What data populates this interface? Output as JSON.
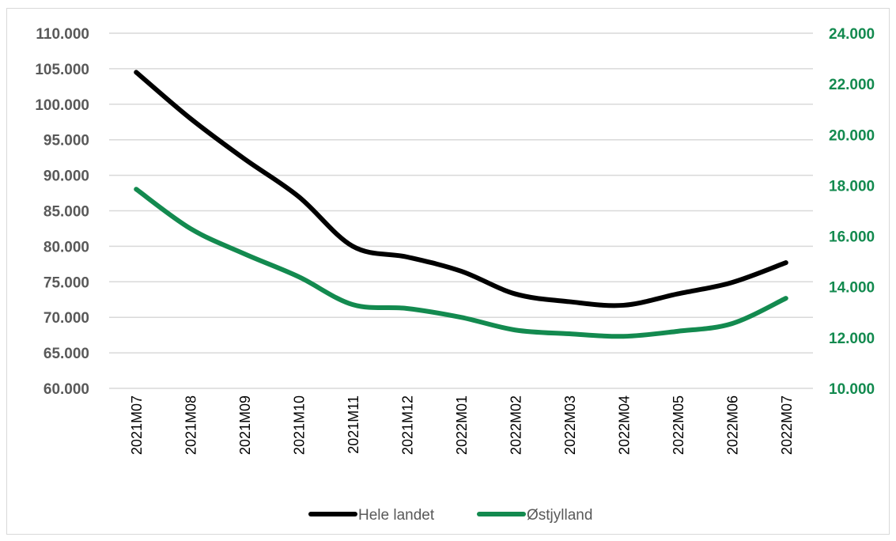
{
  "chart_data": {
    "type": "line",
    "title": "",
    "x": [
      "2021M07",
      "2021M08",
      "2021M09",
      "2021M10",
      "2021M11",
      "2021M12",
      "2022M01",
      "2022M02",
      "2022M03",
      "2022M04",
      "2022M05",
      "2022M06",
      "2022M07"
    ],
    "y_left": {
      "min": 60000,
      "max": 110000,
      "step": 5000,
      "ticks": [
        "60.000",
        "65.000",
        "70.000",
        "75.000",
        "80.000",
        "85.000",
        "90.000",
        "95.000",
        "100.000",
        "105.000",
        "110.000"
      ]
    },
    "y_right": {
      "min": 10000,
      "max": 24000,
      "step": 2000,
      "ticks": [
        "10.000",
        "12.000",
        "14.000",
        "16.000",
        "18.000",
        "20.000",
        "22.000",
        "24.000"
      ]
    },
    "grid": true,
    "legend_position": "bottom",
    "series": [
      {
        "name": "Hele landet",
        "axis": "left",
        "color": "#000000",
        "values": [
          104500,
          98000,
          92300,
          87000,
          80000,
          78500,
          76500,
          73300,
          72200,
          71700,
          73300,
          74900,
          77700
        ]
      },
      {
        "name": "Østjylland",
        "axis": "right",
        "color": "#138a4f",
        "values": [
          17850,
          16300,
          15300,
          14400,
          13300,
          13150,
          12800,
          12300,
          12150,
          12050,
          12250,
          12550,
          13550
        ]
      }
    ],
    "right_axis_color": "#138a4f"
  }
}
